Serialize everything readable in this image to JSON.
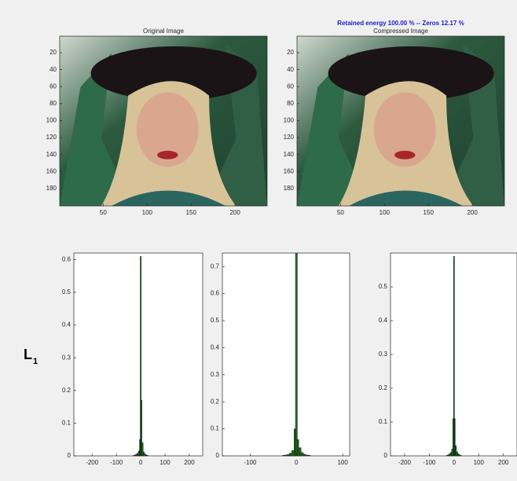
{
  "chart_data": [
    {
      "type": "image",
      "title": "Original Image",
      "xlim": [
        0.5,
        236.5
      ],
      "ylim": [
        0.5,
        200.5
      ],
      "y_reversed": true,
      "xticks": [
        50,
        100,
        150,
        200
      ],
      "yticks": [
        20,
        40,
        60,
        80,
        100,
        120,
        140,
        160,
        180
      ]
    },
    {
      "type": "image",
      "title": "Compressed Image",
      "suptitle": "Retained energy 100.00 % -- Zeros 12.17 %",
      "xlim": [
        0.5,
        236.5
      ],
      "ylim": [
        0.5,
        200.5
      ],
      "y_reversed": true,
      "xticks": [
        50,
        100,
        150,
        200
      ],
      "yticks": [
        20,
        40,
        60,
        80,
        100,
        120,
        140,
        160,
        180
      ]
    },
    {
      "type": "histogram",
      "row_label": {
        "text": "L",
        "subscript": "1"
      },
      "color": "#1d6b1d",
      "bins": [
        -30,
        -25,
        -20,
        -15,
        -10,
        -5,
        -2,
        2,
        5,
        10,
        15,
        20,
        25,
        30
      ],
      "counts": [
        0.002,
        0.003,
        0.005,
        0.008,
        0.015,
        0.05,
        0.61,
        0.17,
        0.04,
        0.012,
        0.006,
        0.003,
        0.002
      ],
      "xlim": [
        -275,
        255
      ],
      "ylim": [
        0,
        0.62
      ],
      "xticks": [
        -200,
        -100,
        0,
        100,
        200
      ],
      "yticks": [
        0,
        0.1,
        0.2,
        0.3,
        0.4,
        0.5,
        0.6
      ]
    },
    {
      "type": "histogram",
      "color": "#1d6b1d",
      "bins": [
        -30,
        -25,
        -20,
        -15,
        -10,
        -5,
        -2,
        2,
        5,
        10,
        15,
        20,
        25,
        30
      ],
      "counts": [
        0.002,
        0.003,
        0.005,
        0.01,
        0.02,
        0.1,
        0.75,
        0.06,
        0.03,
        0.012,
        0.006,
        0.003,
        0.002
      ],
      "xlim": [
        -160,
        115
      ],
      "ylim": [
        0,
        0.75
      ],
      "xticks": [
        -100,
        0,
        100
      ],
      "yticks": [
        0,
        0.1,
        0.2,
        0.3,
        0.4,
        0.5,
        0.6,
        0.7
      ]
    },
    {
      "type": "histogram",
      "color": "#1d6b1d",
      "bins": [
        -30,
        -25,
        -20,
        -15,
        -10,
        -5,
        -2,
        2,
        5,
        10,
        15,
        20,
        25,
        30
      ],
      "counts": [
        0.002,
        0.003,
        0.006,
        0.01,
        0.02,
        0.11,
        0.59,
        0.11,
        0.03,
        0.012,
        0.006,
        0.003,
        0.002
      ],
      "xlim": [
        -257,
        255
      ],
      "ylim": [
        0,
        0.6
      ],
      "xticks": [
        -200,
        -100,
        0,
        100,
        200
      ],
      "yticks": [
        0,
        0.1,
        0.2,
        0.3,
        0.4,
        0.5
      ]
    }
  ]
}
